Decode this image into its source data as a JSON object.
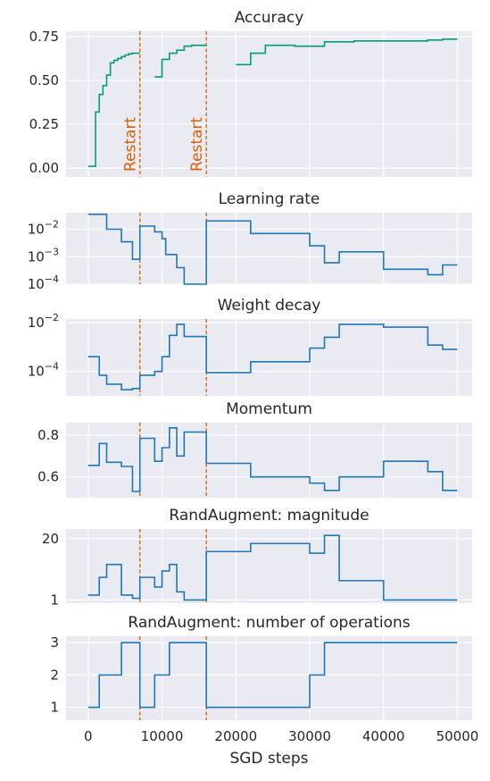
{
  "chart_data": {
    "type": "line",
    "shared_xlabel": "SGD steps",
    "xlim": [
      -3000,
      52000
    ],
    "xticks": [
      0,
      10000,
      20000,
      30000,
      40000,
      50000
    ],
    "xtick_labels": [
      "0",
      "10000",
      "20000",
      "30000",
      "40000",
      "50000"
    ],
    "grid": true,
    "colors": {
      "panel_bg": "#EAEAF2",
      "grid": "#FFFFFF",
      "accuracy_line": "#009E73",
      "hp_line": "#1F77B4",
      "restart_line": "#D55E00",
      "text": "#262626"
    },
    "restarts": [
      {
        "x": 7000,
        "label": "Restart"
      },
      {
        "x": 16000,
        "label": "Restart"
      }
    ],
    "panels": [
      {
        "title": "Accuracy",
        "yscale": "linear",
        "ylim": [
          -0.05,
          0.78
        ],
        "yticks": [
          0.0,
          0.25,
          0.5,
          0.75
        ],
        "ytick_labels": [
          "0.00",
          "0.25",
          "0.50",
          "0.75"
        ],
        "show_restart_labels": true,
        "segments": [
          [
            [
              0,
              0.01
            ],
            [
              1000,
              0.01
            ],
            [
              1000,
              0.32
            ],
            [
              1500,
              0.32
            ],
            [
              1500,
              0.42
            ],
            [
              2000,
              0.42
            ],
            [
              2000,
              0.47
            ],
            [
              2500,
              0.47
            ],
            [
              2500,
              0.53
            ],
            [
              3000,
              0.53
            ],
            [
              3000,
              0.6
            ],
            [
              3500,
              0.6
            ],
            [
              3500,
              0.615
            ],
            [
              4000,
              0.615
            ],
            [
              4000,
              0.625
            ],
            [
              4500,
              0.625
            ],
            [
              4500,
              0.635
            ],
            [
              5000,
              0.635
            ],
            [
              5000,
              0.645
            ],
            [
              5500,
              0.645
            ],
            [
              5500,
              0.652
            ],
            [
              6000,
              0.652
            ],
            [
              6000,
              0.655
            ],
            [
              7000,
              0.655
            ]
          ],
          [
            [
              9000,
              0.52
            ],
            [
              10000,
              0.52
            ],
            [
              10000,
              0.62
            ],
            [
              11000,
              0.62
            ],
            [
              11000,
              0.655
            ],
            [
              12000,
              0.655
            ],
            [
              12000,
              0.672
            ],
            [
              13000,
              0.672
            ],
            [
              13000,
              0.695
            ],
            [
              14000,
              0.695
            ],
            [
              14000,
              0.7
            ],
            [
              16000,
              0.7
            ]
          ],
          [
            [
              20000,
              0.59
            ],
            [
              22000,
              0.59
            ],
            [
              22000,
              0.655
            ],
            [
              24000,
              0.655
            ],
            [
              24000,
              0.7
            ],
            [
              28000,
              0.7
            ],
            [
              28000,
              0.695
            ],
            [
              32000,
              0.695
            ],
            [
              32000,
              0.72
            ],
            [
              36000,
              0.72
            ],
            [
              36000,
              0.725
            ],
            [
              46000,
              0.725
            ],
            [
              46000,
              0.73
            ],
            [
              48000,
              0.73
            ],
            [
              48000,
              0.735
            ],
            [
              50000,
              0.735
            ]
          ]
        ]
      },
      {
        "title": "Learning rate",
        "yscale": "log",
        "ylim": [
          0.0001,
          0.04
        ],
        "yticks": [
          0.01,
          0.001,
          0.0001
        ],
        "ytick_labels": [
          "10−2",
          "10−3",
          "10−4"
        ],
        "segments": [
          [
            [
              0,
              0.035
            ],
            [
              2500,
              0.035
            ],
            [
              2500,
              0.01
            ],
            [
              4500,
              0.01
            ],
            [
              4500,
              0.0035
            ],
            [
              6000,
              0.0035
            ],
            [
              6000,
              0.0008
            ],
            [
              7000,
              0.0008
            ],
            [
              7000,
              0.013
            ],
            [
              9000,
              0.013
            ],
            [
              9000,
              0.008
            ],
            [
              10000,
              0.008
            ],
            [
              10000,
              0.0045
            ],
            [
              10500,
              0.0045
            ],
            [
              10500,
              0.0012
            ],
            [
              12000,
              0.0012
            ],
            [
              12000,
              0.0004
            ],
            [
              13000,
              0.0004
            ],
            [
              13000,
              0.0001
            ],
            [
              16000,
              0.0001
            ],
            [
              16000,
              0.02
            ],
            [
              22000,
              0.02
            ],
            [
              22000,
              0.007
            ],
            [
              30000,
              0.007
            ],
            [
              30000,
              0.0025
            ],
            [
              32000,
              0.0025
            ],
            [
              32000,
              0.0006
            ],
            [
              34000,
              0.0006
            ],
            [
              34000,
              0.0015
            ],
            [
              40000,
              0.0015
            ],
            [
              40000,
              0.00035
            ],
            [
              46000,
              0.00035
            ],
            [
              46000,
              0.00022
            ],
            [
              48000,
              0.00022
            ],
            [
              48000,
              0.0005
            ],
            [
              50000,
              0.0005
            ]
          ]
        ]
      },
      {
        "title": "Weight decay",
        "yscale": "log",
        "ylim": [
          1e-05,
          0.014
        ],
        "yticks": [
          0.01,
          0.0001
        ],
        "ytick_labels": [
          "10−2",
          "10−4"
        ],
        "segments": [
          [
            [
              0,
              0.0004
            ],
            [
              1500,
              0.0004
            ],
            [
              1500,
              7e-05
            ],
            [
              2500,
              7e-05
            ],
            [
              2500,
              3e-05
            ],
            [
              4500,
              3e-05
            ],
            [
              4500,
              1.8e-05
            ],
            [
              6000,
              1.8e-05
            ],
            [
              6000,
              2e-05
            ],
            [
              7000,
              2e-05
            ],
            [
              7000,
              7e-05
            ],
            [
              9000,
              7e-05
            ],
            [
              9000,
              0.0001
            ],
            [
              10000,
              0.0001
            ],
            [
              10000,
              0.0004
            ],
            [
              11000,
              0.0004
            ],
            [
              11000,
              0.003
            ],
            [
              12000,
              0.003
            ],
            [
              12000,
              0.0085
            ],
            [
              13000,
              0.0085
            ],
            [
              13000,
              0.0027
            ],
            [
              16000,
              0.0027
            ],
            [
              16000,
              9e-05
            ],
            [
              22000,
              9e-05
            ],
            [
              22000,
              0.00025
            ],
            [
              30000,
              0.00025
            ],
            [
              30000,
              0.0009
            ],
            [
              32000,
              0.0009
            ],
            [
              32000,
              0.0025
            ],
            [
              34000,
              0.0025
            ],
            [
              34000,
              0.0085
            ],
            [
              40000,
              0.0085
            ],
            [
              40000,
              0.0065
            ],
            [
              46000,
              0.0065
            ],
            [
              46000,
              0.0012
            ],
            [
              48000,
              0.0012
            ],
            [
              48000,
              0.0008
            ],
            [
              50000,
              0.0008
            ]
          ]
        ]
      },
      {
        "title": "Momentum",
        "yscale": "linear",
        "ylim": [
          0.5,
          0.86
        ],
        "yticks": [
          0.6,
          0.8
        ],
        "ytick_labels": [
          "0.6",
          "0.8"
        ],
        "segments": [
          [
            [
              0,
              0.655
            ],
            [
              1500,
              0.655
            ],
            [
              1500,
              0.76
            ],
            [
              2500,
              0.76
            ],
            [
              2500,
              0.67
            ],
            [
              4500,
              0.67
            ],
            [
              4500,
              0.65
            ],
            [
              6000,
              0.65
            ],
            [
              6000,
              0.53
            ],
            [
              7000,
              0.53
            ],
            [
              7000,
              0.785
            ],
            [
              9000,
              0.785
            ],
            [
              9000,
              0.675
            ],
            [
              10000,
              0.675
            ],
            [
              10000,
              0.74
            ],
            [
              11000,
              0.74
            ],
            [
              11000,
              0.835
            ],
            [
              12000,
              0.835
            ],
            [
              12000,
              0.7
            ],
            [
              13000,
              0.7
            ],
            [
              13000,
              0.815
            ],
            [
              16000,
              0.815
            ],
            [
              16000,
              0.665
            ],
            [
              22000,
              0.665
            ],
            [
              22000,
              0.6
            ],
            [
              30000,
              0.6
            ],
            [
              30000,
              0.57
            ],
            [
              32000,
              0.57
            ],
            [
              32000,
              0.535
            ],
            [
              34000,
              0.535
            ],
            [
              34000,
              0.6
            ],
            [
              40000,
              0.6
            ],
            [
              40000,
              0.675
            ],
            [
              46000,
              0.675
            ],
            [
              46000,
              0.625
            ],
            [
              48000,
              0.625
            ],
            [
              48000,
              0.535
            ],
            [
              50000,
              0.535
            ]
          ]
        ]
      },
      {
        "title": "RandAugment: magnitude",
        "yscale": "linear",
        "ylim": [
          0,
          23
        ],
        "yticks": [
          1,
          20
        ],
        "ytick_labels": [
          "1",
          "20"
        ],
        "segments": [
          [
            [
              0,
              2.5
            ],
            [
              1500,
              2.5
            ],
            [
              1500,
              8
            ],
            [
              2500,
              8
            ],
            [
              2500,
              12
            ],
            [
              4500,
              12
            ],
            [
              4500,
              2.5
            ],
            [
              6000,
              2.5
            ],
            [
              6000,
              1.5
            ],
            [
              7000,
              1.5
            ],
            [
              7000,
              8
            ],
            [
              9000,
              8
            ],
            [
              9000,
              5
            ],
            [
              10000,
              5
            ],
            [
              10000,
              10
            ],
            [
              11000,
              10
            ],
            [
              11000,
              12
            ],
            [
              12000,
              12
            ],
            [
              12000,
              3.5
            ],
            [
              13000,
              3.5
            ],
            [
              13000,
              1
            ],
            [
              16000,
              1
            ],
            [
              16000,
              16
            ],
            [
              22000,
              16
            ],
            [
              22000,
              18.5
            ],
            [
              30000,
              18.5
            ],
            [
              30000,
              15.5
            ],
            [
              32000,
              15.5
            ],
            [
              32000,
              21
            ],
            [
              34000,
              21
            ],
            [
              34000,
              7
            ],
            [
              40000,
              7
            ],
            [
              40000,
              1
            ],
            [
              50000,
              1
            ]
          ]
        ]
      },
      {
        "title": "RandAugment: number of operations",
        "yscale": "linear",
        "ylim": [
          0.6,
          3.2
        ],
        "yticks": [
          1,
          2,
          3
        ],
        "ytick_labels": [
          "1",
          "2",
          "3"
        ],
        "segments": [
          [
            [
              0,
              1
            ],
            [
              1500,
              1
            ],
            [
              1500,
              2
            ],
            [
              4500,
              2
            ],
            [
              4500,
              3
            ],
            [
              7000,
              3
            ],
            [
              7000,
              1
            ],
            [
              9000,
              1
            ],
            [
              9000,
              2
            ],
            [
              11000,
              2
            ],
            [
              11000,
              3
            ],
            [
              16000,
              3
            ],
            [
              16000,
              1
            ],
            [
              30000,
              1
            ],
            [
              30000,
              2
            ],
            [
              32000,
              2
            ],
            [
              32000,
              3
            ],
            [
              50000,
              3
            ]
          ]
        ]
      }
    ]
  }
}
